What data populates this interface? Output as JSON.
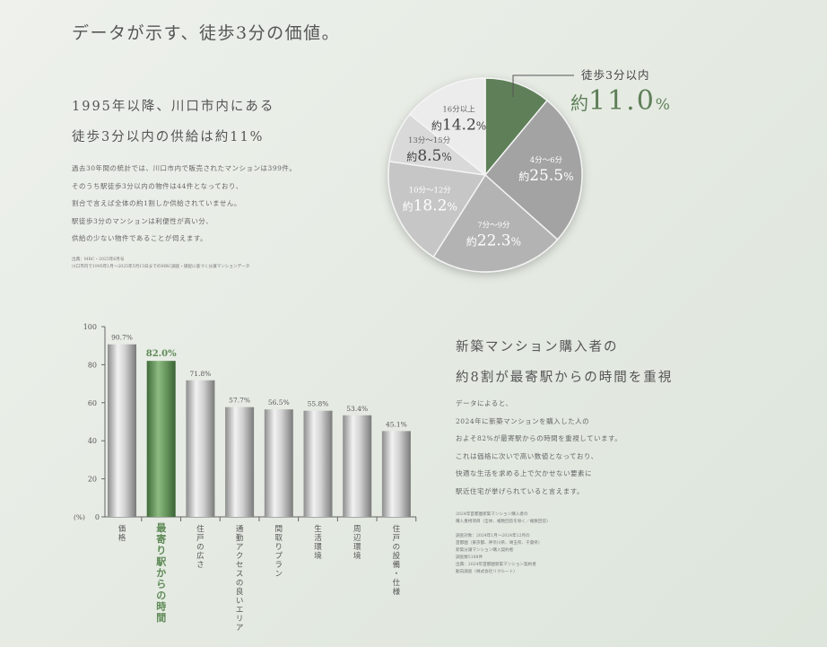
{
  "title": "データが示す、徒歩3分の価値。",
  "section1": {
    "heading": [
      "1995年以降、川口市内にある",
      "徒歩3分以内の供給は約11%"
    ],
    "body": [
      "過去30年間の統計では、川口市内で販売されたマンションは399件。",
      "そのうち駅徒歩3分以内の物件は44件となっており、",
      "割合で言えば全体の約1割しか供給されていません。",
      "駅徒歩3分のマンションは利便性が高い分、",
      "供給の少ない物件であることが伺えます。"
    ],
    "notes": [
      "出典：MRC・2025年6月号",
      "川口市内で1995年1月～2025年5月15日までのMRC調査・捕捉に基づく分譲マンションデータ"
    ]
  },
  "section2": {
    "heading": [
      "新築マンション購入者の",
      "約8割が最寄駅からの時間を重視"
    ],
    "body": [
      "データによると、",
      "2024年に新築マンションを購入した人の",
      "およそ82%が最寄駅からの時間を重視しています。",
      "これは価格に次いで高い数値となっており、",
      "快適な生活を求める上で欠かせない要素に",
      "駅近住宅が挙げられていると言えます。"
    ],
    "notes": [
      "2024年首都圏新築マンション購入者の",
      "購入重視項目（全体、複数回答を除く／複数回答）",
      "",
      "調査対象：2024年1月～2024年12月の",
      "首都圏（東京都、神奈川県、埼玉県、千葉県）",
      "新築分譲マンション購入契約者",
      "調査数5188件",
      "出典：2024年首都圏新築マンション契約者",
      "動向調査（株式会社リクルート）"
    ]
  },
  "chart_data": [
    {
      "type": "pie",
      "categories": [
        "徒歩3分以内",
        "4分～6分",
        "7分～9分",
        "10分～12分",
        "13分～15分",
        "16分以上"
      ],
      "values": [
        11.0,
        25.5,
        22.3,
        18.2,
        8.5,
        14.2
      ],
      "prefix": "約",
      "unit": "%",
      "colors": [
        "#5f7f58",
        "#a3a3a3",
        "#b3b3b3",
        "#c6c6c6",
        "#d9d9d9",
        "#ececec"
      ],
      "highlight_index": 0
    },
    {
      "type": "bar",
      "categories": [
        "価格",
        "最寄り駅からの時間",
        "住戸の広さ",
        "通勤アクセスの良いエリア",
        "間取りプラン",
        "生活環境",
        "周辺環境",
        "住戸の設備・仕様"
      ],
      "values": [
        90.7,
        82.0,
        71.8,
        57.7,
        56.5,
        55.8,
        53.4,
        45.1
      ],
      "ylim": [
        0,
        100
      ],
      "yticks": [
        0,
        20,
        40,
        60,
        80,
        100
      ],
      "ylabel": "(%)",
      "unit": "%",
      "highlight_index": 1,
      "bar_color": "#b8b8b8",
      "highlight_color": "#5f8a57"
    }
  ]
}
